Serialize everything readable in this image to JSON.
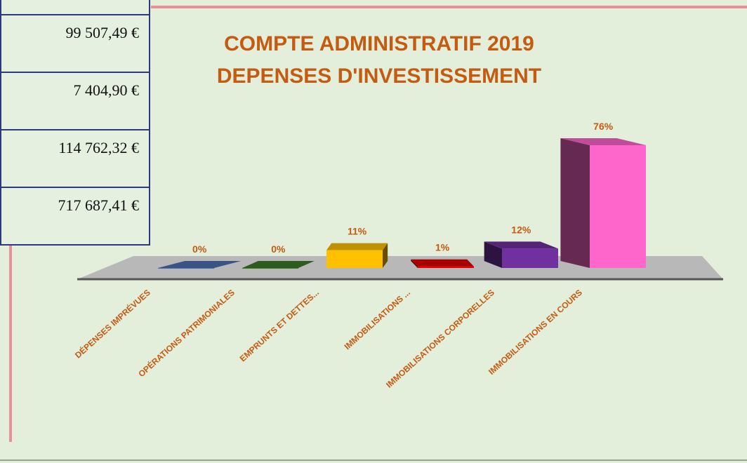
{
  "table": {
    "rows": [
      "99 507,49 €",
      "7 404,90 €",
      "114 762,32 €",
      "717 687,41 €"
    ]
  },
  "chart_data": {
    "type": "bar3d",
    "title": [
      "COMPTE ADMINISTRATIF 2019",
      "DEPENSES D'INVESTISSEMENT"
    ],
    "categories": [
      "DÉPENSES IMPRÉVUES",
      "OPÉRATIONS PATRIMONIALES",
      "EMPRUNTS ET DETTES...",
      "IMMOBILISATIONS ...",
      "IMMOBILISATIONS CORPORELLES",
      "IMMOBILISATIONS EN COURS"
    ],
    "values": [
      0,
      0,
      11,
      1,
      12,
      76
    ],
    "value_labels": [
      "0%",
      "0%",
      "11%",
      "1%",
      "12%",
      "76%"
    ],
    "colors": [
      "#4a6fb0",
      "#3b7a2a",
      "#ffc000",
      "#e00000",
      "#7030a0",
      "#ff66cc"
    ]
  }
}
